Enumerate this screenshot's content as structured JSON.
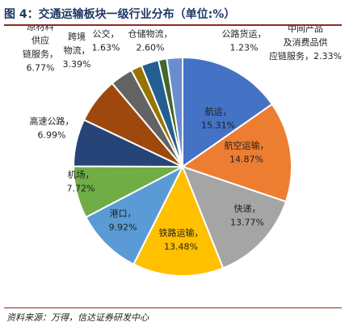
{
  "header": {
    "title": "图 4：交通运输板块一级行业分布（单位:%）"
  },
  "footer": {
    "source": "资料来源：万得，信达证券研发中心"
  },
  "chart_data": {
    "type": "pie",
    "title": "",
    "slices": [
      {
        "name": "航运",
        "value": 15.31,
        "label": "15.31%",
        "color": "#4472c4"
      },
      {
        "name": "航空运输",
        "value": 14.87,
        "label": "14.87%",
        "color": "#ed7d31"
      },
      {
        "name": "快递",
        "value": 13.77,
        "label": "13.77%",
        "color": "#a5a5a5"
      },
      {
        "name": "铁路运输",
        "value": 13.48,
        "label": "13.48%",
        "color": "#ffc000"
      },
      {
        "name": "港口",
        "value": 9.92,
        "label": "9.92%",
        "color": "#5b9bd5"
      },
      {
        "name": "机场",
        "value": 7.72,
        "label": "7.72%",
        "color": "#70ad47"
      },
      {
        "name": "高速公路",
        "value": 6.99,
        "label": "6.99%",
        "color": "#264478"
      },
      {
        "name": "原材料供应链服务",
        "value": 6.77,
        "label": "6.77%",
        "color": "#9e480e"
      },
      {
        "name": "跨境物流",
        "value": 3.39,
        "label": "3.39%",
        "color": "#636363"
      },
      {
        "name": "公交",
        "value": 1.63,
        "label": "1.63%",
        "color": "#997300"
      },
      {
        "name": "仓储物流",
        "value": 2.6,
        "label": "2.60%",
        "color": "#255e91"
      },
      {
        "name": "公路货运",
        "value": 1.23,
        "label": "1.23%",
        "color": "#43682b"
      },
      {
        "name": "中间产品及消费品供应链服务",
        "value": 2.33,
        "label": "2.33%",
        "color": "#698ed0"
      }
    ]
  }
}
